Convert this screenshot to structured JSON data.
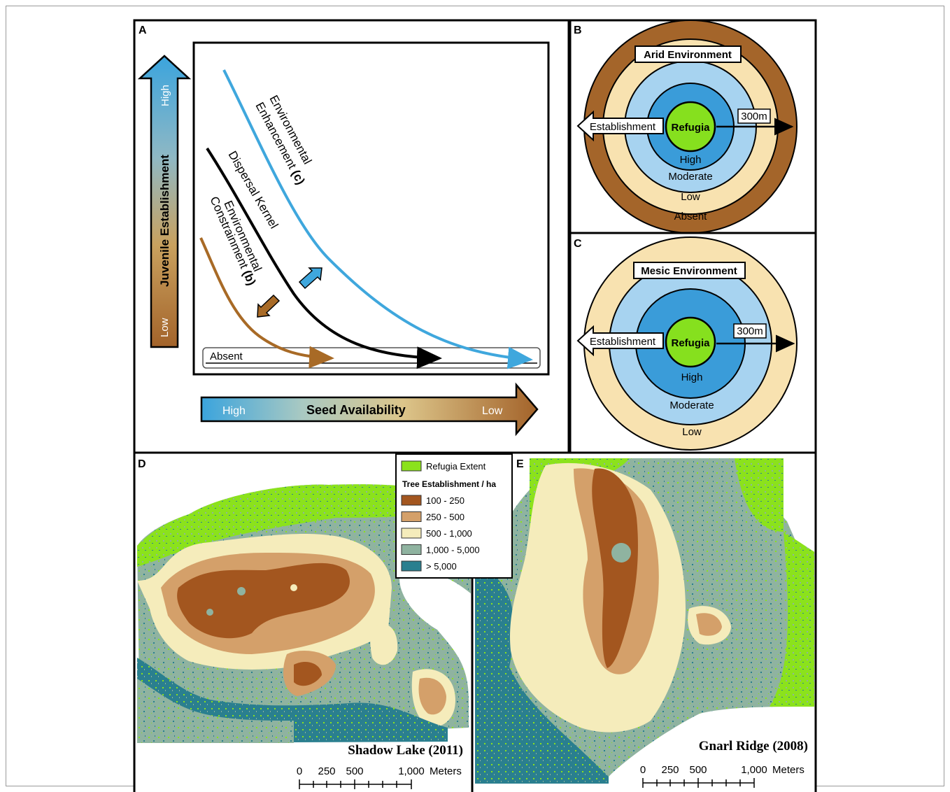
{
  "panels": {
    "a": {
      "letter": "A",
      "y_axis": {
        "title": "Juvenile Establishment",
        "high": "High",
        "low": "Low"
      },
      "x_axis": {
        "title": "Seed Availability",
        "high": "High",
        "low": "Low"
      },
      "absent_label": "Absent",
      "curves": {
        "enhancement_1": "Environmental",
        "enhancement_2": "Enhancement",
        "enhancement_ref": "(c)",
        "kernel": "Dispersal Kernel",
        "constraint_1": "Environmental",
        "constraint_2": "Constrainment",
        "constraint_ref": "(b)"
      },
      "colors": {
        "enhancement": "#3fa7dd",
        "kernel": "#000000",
        "constraint": "#a86a26"
      }
    },
    "b": {
      "letter": "B",
      "title": "Arid Environment",
      "center": "Refugia",
      "establishment": "Establishment",
      "distance": "300m",
      "rings": {
        "high": "High",
        "moderate": "Moderate",
        "low": "Low",
        "absent": "Absent"
      }
    },
    "c": {
      "letter": "C",
      "title": "Mesic Environment",
      "center": "Refugia",
      "establishment": "Establishment",
      "distance": "300m",
      "rings": {
        "high": "High",
        "moderate": "Moderate",
        "low": "Low"
      }
    },
    "d": {
      "letter": "D",
      "site": "Shadow Lake (2011)",
      "scale": {
        "t0": "0",
        "t1": "250",
        "t2": "500",
        "t3": "1,000",
        "unit": "Meters"
      }
    },
    "e": {
      "letter": "E",
      "site": "Gnarl Ridge (2008)",
      "scale": {
        "t0": "0",
        "t1": "250",
        "t2": "500",
        "t3": "1,000",
        "unit": "Meters"
      }
    }
  },
  "legend": {
    "refugia": "Refugia Extent",
    "title": "Tree Establishment / ha",
    "classes": [
      {
        "label": "100 - 250",
        "color": "#a3561f"
      },
      {
        "label": "250 - 500",
        "color": "#d4a06a"
      },
      {
        "label": "500 - 1,000",
        "color": "#f5ecbb"
      },
      {
        "label": "1,000 - 5,000",
        "color": "#8fb3a0"
      },
      {
        "label": "> 5,000",
        "color": "#2a7f8f"
      }
    ],
    "refugia_color": "#8be21c"
  },
  "ring_colors": {
    "refugia": "#86e01e",
    "high": "#3a9cd9",
    "moderate": "#a7d3f0",
    "low": "#f8e2b0",
    "absent": "#a4652a"
  }
}
